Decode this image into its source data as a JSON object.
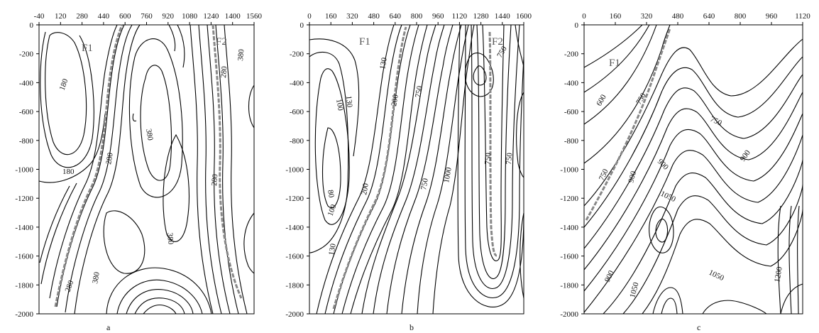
{
  "figure": {
    "panels": [
      {
        "id": "a",
        "label": "a",
        "x_ticks": [
          "-40",
          "120",
          "280",
          "440",
          "600",
          "760",
          "920",
          "1080",
          "1240",
          "1400",
          "1560"
        ],
        "y_ticks": [
          "0",
          "-200",
          "-400",
          "-600",
          "-800",
          "-1000",
          "-1200",
          "-1400",
          "-1600",
          "-1800",
          "-2000"
        ],
        "contour_labels": [
          "180",
          "180",
          "380",
          "280",
          "380",
          "280",
          "380",
          "280",
          "380",
          "280"
        ],
        "fault_labels": [
          "F1",
          "F2"
        ]
      },
      {
        "id": "b",
        "label": "b",
        "x_ticks": [
          "0",
          "160",
          "320",
          "480",
          "640",
          "800",
          "960",
          "1120",
          "1280",
          "1440",
          "1600"
        ],
        "y_ticks": [
          "0",
          "-200",
          "-400",
          "-600",
          "-800",
          "-1000",
          "-1200",
          "-1400",
          "-1600",
          "-1800",
          "-2000"
        ],
        "contour_labels": [
          "130",
          "130",
          "100",
          "200",
          "750",
          "750",
          "750",
          "80",
          "200",
          "750",
          "1000",
          "750",
          "100",
          "130"
        ],
        "fault_labels": [
          "F1",
          "F2"
        ]
      },
      {
        "id": "c",
        "label": "c",
        "x_ticks": [
          "0",
          "160",
          "320",
          "480",
          "640",
          "800",
          "960",
          "1120"
        ],
        "y_ticks": [
          "0",
          "-200",
          "-400",
          "-600",
          "-800",
          "-1000",
          "-1200",
          "-1400",
          "-1600",
          "-1800",
          "-2000"
        ],
        "contour_labels": [
          "600",
          "750",
          "750",
          "900",
          "900",
          "900",
          "750",
          "1050",
          "1050",
          "900",
          "1050",
          "1200"
        ],
        "fault_labels": [
          "F1"
        ]
      }
    ]
  },
  "chart_data": [
    {
      "type": "contour",
      "panel": "a",
      "title": "",
      "xlabel": "",
      "ylabel": "",
      "xlim": [
        -40,
        1560
      ],
      "ylim": [
        -2000,
        0
      ],
      "contour_levels_labeled": [
        180,
        280,
        380
      ],
      "faults": [
        "F1",
        "F2"
      ]
    },
    {
      "type": "contour",
      "panel": "b",
      "title": "",
      "xlabel": "",
      "ylabel": "",
      "xlim": [
        0,
        1600
      ],
      "ylim": [
        -2000,
        0
      ],
      "contour_levels_labeled": [
        80,
        100,
        130,
        200,
        750,
        1000
      ],
      "faults": [
        "F1",
        "F2"
      ]
    },
    {
      "type": "contour",
      "panel": "c",
      "title": "",
      "xlabel": "",
      "ylabel": "",
      "xlim": [
        0,
        1120
      ],
      "ylim": [
        -2000,
        0
      ],
      "contour_levels_labeled": [
        600,
        750,
        900,
        1050,
        1200
      ],
      "faults": [
        "F1"
      ]
    }
  ]
}
